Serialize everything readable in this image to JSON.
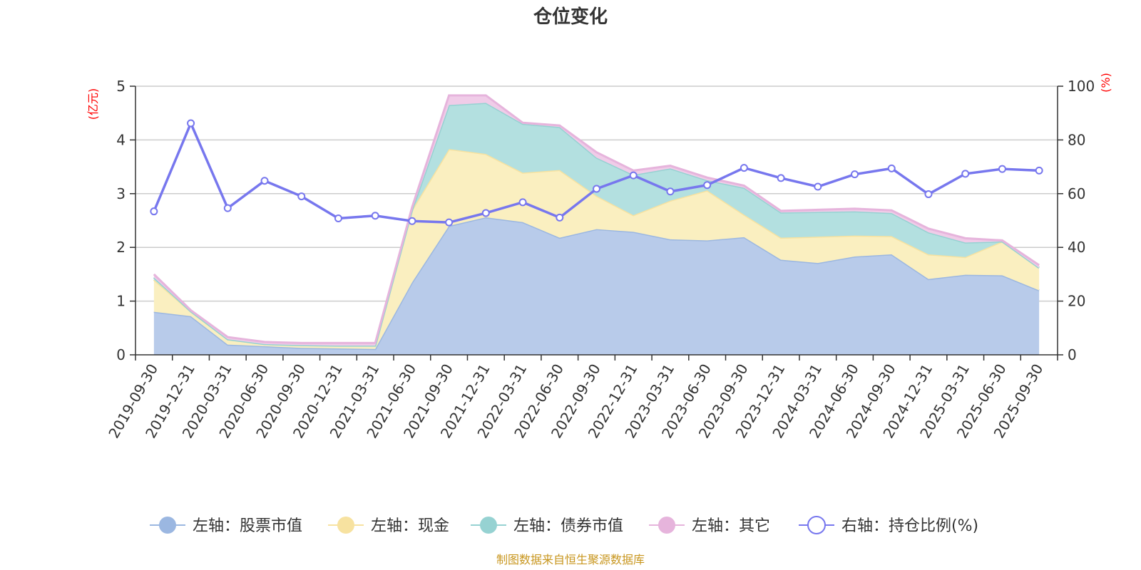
{
  "chart_data": {
    "type": "area",
    "title": "仓位变化",
    "left_axis": {
      "unit": "(亿元)",
      "min": 0,
      "max": 5,
      "ticks": [
        "0",
        "1",
        "2",
        "3",
        "4",
        "5"
      ]
    },
    "right_axis": {
      "unit": "(%)",
      "min": 0,
      "max": 100,
      "ticks": [
        "0",
        "20",
        "40",
        "60",
        "80",
        "100"
      ]
    },
    "categories": [
      "2019-09-30",
      "2019-12-31",
      "2020-03-31",
      "2020-06-30",
      "2020-09-30",
      "2020-12-31",
      "2021-03-31",
      "2021-06-30",
      "2021-09-30",
      "2021-12-31",
      "2022-03-31",
      "2022-06-30",
      "2022-09-30",
      "2022-12-31",
      "2023-03-31",
      "2023-06-30",
      "2023-09-30",
      "2023-12-31",
      "2024-03-31",
      "2024-06-30",
      "2024-09-30",
      "2024-12-31",
      "2025-03-31",
      "2025-06-30",
      "2025-09-30"
    ],
    "series": [
      {
        "name": "左轴：股票市值",
        "axis": "left",
        "type": "area",
        "color": "#9bb7e1",
        "fill": "#b8cbea",
        "values": [
          0.8,
          0.72,
          0.19,
          0.16,
          0.13,
          0.12,
          0.11,
          1.35,
          2.4,
          2.56,
          2.47,
          2.18,
          2.34,
          2.29,
          2.15,
          2.13,
          2.19,
          1.77,
          1.71,
          1.83,
          1.87,
          1.41,
          1.49,
          1.48,
          1.2
        ]
      },
      {
        "name": "左轴：现金",
        "axis": "left",
        "type": "area",
        "color": "#f7e2a0",
        "fill": "#faefc0",
        "values": [
          0.6,
          0.09,
          0.1,
          0.04,
          0.05,
          0.05,
          0.06,
          1.35,
          1.43,
          1.18,
          0.92,
          1.26,
          0.62,
          0.31,
          0.72,
          0.93,
          0.42,
          0.41,
          0.49,
          0.39,
          0.34,
          0.46,
          0.33,
          0.63,
          0.42
        ]
      },
      {
        "name": "左轴：债券市值",
        "axis": "left",
        "type": "area",
        "color": "#96d2d2",
        "fill": "#b3e0e0",
        "values": [
          0.04,
          0.0,
          0.0,
          0.0,
          0.0,
          0.0,
          0.0,
          0.0,
          0.82,
          0.95,
          0.91,
          0.8,
          0.71,
          0.75,
          0.6,
          0.19,
          0.5,
          0.47,
          0.46,
          0.45,
          0.43,
          0.41,
          0.27,
          0.0,
          0.0
        ]
      },
      {
        "name": "左轴：其它",
        "axis": "left",
        "type": "area",
        "color": "#e6b4dc",
        "fill": "#f0cce8",
        "values": [
          0.06,
          0.02,
          0.04,
          0.04,
          0.04,
          0.05,
          0.05,
          0.05,
          0.18,
          0.14,
          0.02,
          0.03,
          0.1,
          0.08,
          0.05,
          0.05,
          0.04,
          0.03,
          0.04,
          0.05,
          0.05,
          0.07,
          0.08,
          0.02,
          0.05
        ]
      },
      {
        "name": "右轴：持仓比例(%)",
        "axis": "right",
        "type": "line",
        "color": "#7777ee",
        "values": [
          53.4,
          86.2,
          54.6,
          64.8,
          59.0,
          50.8,
          51.8,
          49.8,
          49.3,
          52.8,
          56.8,
          51.1,
          61.8,
          66.8,
          60.8,
          63.2,
          69.6,
          65.8,
          62.6,
          67.2,
          69.4,
          59.8,
          67.4,
          69.2,
          68.6
        ]
      }
    ],
    "legend_position": "bottom",
    "grid": true,
    "source_note": "制图数据来自恒生聚源数据库"
  }
}
